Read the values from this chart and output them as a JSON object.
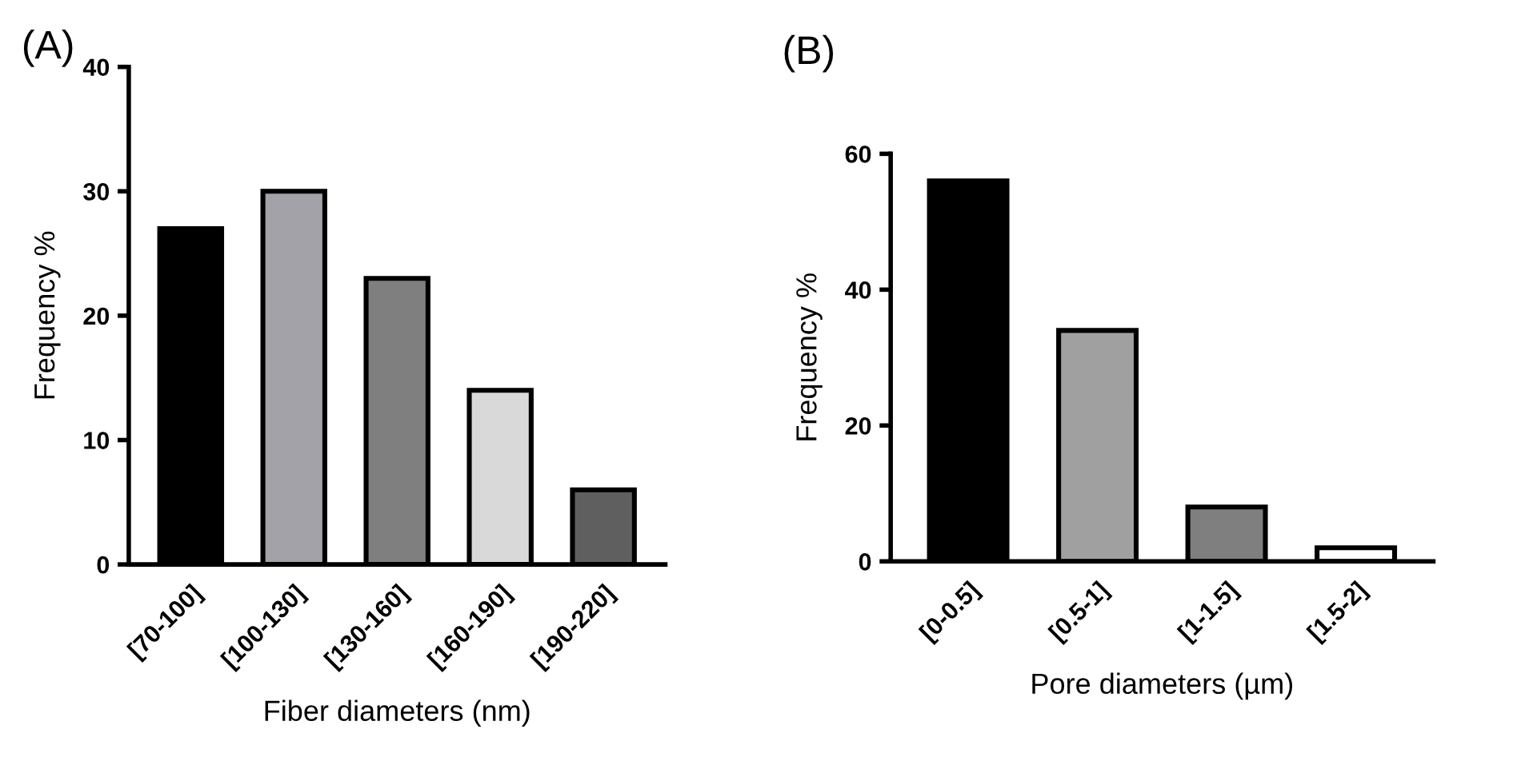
{
  "chart_data": [
    {
      "type": "bar",
      "annotations": [
        "(A)"
      ],
      "xlabel": "Fiber diameters (nm)",
      "ylabel": "Frequency %",
      "categories": [
        "[70-100]",
        "[100-130]",
        "[130-160]",
        "[160-190]",
        "[190-220]"
      ],
      "values": [
        27,
        30,
        23,
        14,
        6
      ],
      "colors": [
        "#000000",
        "#a2a2a8",
        "#7f7f7f",
        "#d9d9d9",
        "#5f5f5f"
      ],
      "ylim": [
        0,
        40
      ],
      "yticks": [
        0,
        10,
        20,
        30,
        40
      ],
      "grid": false,
      "legend": false
    },
    {
      "type": "bar",
      "annotations": [
        "(B)"
      ],
      "xlabel": "Pore diameters (µm)",
      "ylabel": "Frequency %",
      "categories": [
        "[0-0.5]",
        "[0.5-1]",
        "[1-1.5]",
        "[1.5-2]"
      ],
      "values": [
        56,
        34,
        8,
        2
      ],
      "colors": [
        "#000000",
        "#a0a0a0",
        "#7f7f7f",
        "#ffffff"
      ],
      "ylim": [
        0,
        60
      ],
      "yticks": [
        0,
        20,
        40,
        60
      ],
      "grid": false,
      "legend": false
    }
  ]
}
